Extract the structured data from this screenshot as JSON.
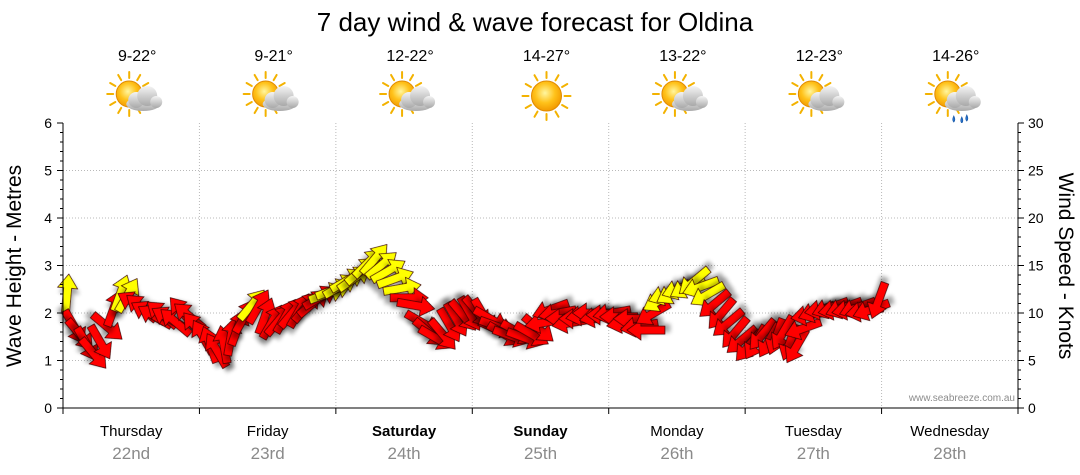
{
  "chart_data": {
    "type": "line",
    "title": "7 day wind & wave forecast for Oldina",
    "ylabel_left": "Wave Height - Metres",
    "ylabel_right": "Wind Speed - Knots",
    "ylim_left": [
      0,
      6
    ],
    "ylim_right": [
      0,
      30
    ],
    "yticks_left": [
      "0",
      "1",
      "2",
      "3",
      "4",
      "5",
      "6"
    ],
    "yticks_right": [
      "0",
      "5",
      "10",
      "15",
      "20",
      "25",
      "30"
    ],
    "watermark": "www.seabreeze.com.au",
    "days": [
      {
        "name": "Thursday",
        "date": "22nd",
        "temp": "9-22°",
        "weather_icon": "partly-cloudy-icon",
        "bold": false
      },
      {
        "name": "Friday",
        "date": "23rd",
        "temp": "9-21°",
        "weather_icon": "partly-cloudy-icon",
        "bold": false
      },
      {
        "name": "Saturday",
        "date": "24th",
        "temp": "12-22°",
        "weather_icon": "partly-cloudy-icon",
        "bold": true
      },
      {
        "name": "Sunday",
        "date": "25th",
        "temp": "14-27°",
        "weather_icon": "sunny-icon",
        "bold": true
      },
      {
        "name": "Monday",
        "date": "26th",
        "temp": "13-22°",
        "weather_icon": "partly-cloudy-icon",
        "bold": false
      },
      {
        "name": "Tuesday",
        "date": "27th",
        "temp": "12-23°",
        "weather_icon": "partly-cloudy-icon",
        "bold": false
      },
      {
        "name": "Wednesday",
        "date": "28th",
        "temp": "14-26°",
        "weather_icon": "showers-icon",
        "bold": false
      }
    ],
    "wind_series": {
      "name": "Wind Speed",
      "unit": "knots",
      "colors": {
        "light": "#ffff00",
        "strong": "#ff0000"
      },
      "points": [
        {
          "t": 0.03,
          "speed": 12.0,
          "dir": 185,
          "c": "y"
        },
        {
          "t": 0.08,
          "speed": 8.6,
          "dir": 330,
          "c": "r"
        },
        {
          "t": 0.12,
          "speed": 7.8,
          "dir": 320,
          "c": "r"
        },
        {
          "t": 0.17,
          "speed": 6.8,
          "dir": 330,
          "c": "r"
        },
        {
          "t": 0.22,
          "speed": 5.8,
          "dir": 320,
          "c": "r"
        },
        {
          "t": 0.27,
          "speed": 7.0,
          "dir": 330,
          "c": "r"
        },
        {
          "t": 0.32,
          "speed": 8.6,
          "dir": 310,
          "c": "r"
        },
        {
          "t": 0.37,
          "speed": 10.4,
          "dir": 200,
          "c": "r"
        },
        {
          "t": 0.42,
          "speed": 12.0,
          "dir": 200,
          "c": "y"
        },
        {
          "t": 0.47,
          "speed": 11.8,
          "dir": 210,
          "c": "y"
        },
        {
          "t": 0.53,
          "speed": 11.0,
          "dir": 120,
          "c": "r"
        },
        {
          "t": 0.58,
          "speed": 10.5,
          "dir": 130,
          "c": "r"
        },
        {
          "t": 0.63,
          "speed": 10.0,
          "dir": 120,
          "c": "r"
        },
        {
          "t": 0.68,
          "speed": 9.6,
          "dir": 120,
          "c": "r"
        },
        {
          "t": 0.73,
          "speed": 9.8,
          "dir": 130,
          "c": "r"
        },
        {
          "t": 0.78,
          "speed": 9.4,
          "dir": 120,
          "c": "r"
        },
        {
          "t": 0.83,
          "speed": 9.0,
          "dir": 130,
          "c": "r"
        },
        {
          "t": 0.88,
          "speed": 10.0,
          "dir": 140,
          "c": "r"
        },
        {
          "t": 0.93,
          "speed": 9.6,
          "dir": 130,
          "c": "r"
        },
        {
          "t": 0.98,
          "speed": 8.4,
          "dir": 140,
          "c": "r"
        },
        {
          "t": 1.03,
          "speed": 7.4,
          "dir": 150,
          "c": "r"
        },
        {
          "t": 1.08,
          "speed": 6.6,
          "dir": 160,
          "c": "r"
        },
        {
          "t": 1.13,
          "speed": 6.0,
          "dir": 150,
          "c": "r"
        },
        {
          "t": 1.18,
          "speed": 6.6,
          "dir": 170,
          "c": "r"
        },
        {
          "t": 1.23,
          "speed": 7.4,
          "dir": 190,
          "c": "r"
        },
        {
          "t": 1.28,
          "speed": 8.4,
          "dir": 200,
          "c": "r"
        },
        {
          "t": 1.33,
          "speed": 9.6,
          "dir": 210,
          "c": "r"
        },
        {
          "t": 1.38,
          "speed": 10.8,
          "dir": 220,
          "c": "y"
        },
        {
          "t": 1.43,
          "speed": 10.6,
          "dir": 210,
          "c": "r"
        },
        {
          "t": 1.48,
          "speed": 9.6,
          "dir": 200,
          "c": "r"
        },
        {
          "t": 1.53,
          "speed": 9.0,
          "dir": 210,
          "c": "r"
        },
        {
          "t": 1.58,
          "speed": 9.2,
          "dir": 220,
          "c": "r"
        },
        {
          "t": 1.63,
          "speed": 9.6,
          "dir": 210,
          "c": "r"
        },
        {
          "t": 1.68,
          "speed": 10.0,
          "dir": 220,
          "c": "r"
        },
        {
          "t": 1.73,
          "speed": 10.2,
          "dir": 210,
          "c": "r"
        },
        {
          "t": 1.78,
          "speed": 10.6,
          "dir": 220,
          "c": "r"
        },
        {
          "t": 1.83,
          "speed": 11.0,
          "dir": 230,
          "c": "r"
        },
        {
          "t": 1.88,
          "speed": 11.6,
          "dir": 240,
          "c": "r"
        },
        {
          "t": 1.93,
          "speed": 12.0,
          "dir": 250,
          "c": "y"
        },
        {
          "t": 1.98,
          "speed": 12.4,
          "dir": 250,
          "c": "y"
        },
        {
          "t": 2.03,
          "speed": 12.8,
          "dir": 240,
          "c": "y"
        },
        {
          "t": 2.08,
          "speed": 13.4,
          "dir": 240,
          "c": "y"
        },
        {
          "t": 2.13,
          "speed": 13.6,
          "dir": 235,
          "c": "y"
        },
        {
          "t": 2.18,
          "speed": 14.4,
          "dir": 230,
          "c": "y"
        },
        {
          "t": 2.23,
          "speed": 15.2,
          "dir": 225,
          "c": "y"
        },
        {
          "t": 2.28,
          "speed": 15.6,
          "dir": 220,
          "c": "y"
        },
        {
          "t": 2.33,
          "speed": 15.0,
          "dir": 230,
          "c": "y"
        },
        {
          "t": 2.38,
          "speed": 14.4,
          "dir": 240,
          "c": "y"
        },
        {
          "t": 2.43,
          "speed": 13.6,
          "dir": 250,
          "c": "y"
        },
        {
          "t": 2.48,
          "speed": 12.6,
          "dir": 260,
          "c": "y"
        },
        {
          "t": 2.53,
          "speed": 11.6,
          "dir": 270,
          "c": "r"
        },
        {
          "t": 2.58,
          "speed": 10.8,
          "dir": 280,
          "c": "r"
        },
        {
          "t": 2.63,
          "speed": 9.0,
          "dir": 300,
          "c": "r"
        },
        {
          "t": 2.68,
          "speed": 8.0,
          "dir": 310,
          "c": "r"
        },
        {
          "t": 2.73,
          "speed": 7.4,
          "dir": 300,
          "c": "r"
        },
        {
          "t": 2.78,
          "speed": 7.8,
          "dir": 320,
          "c": "r"
        },
        {
          "t": 2.83,
          "speed": 8.8,
          "dir": 330,
          "c": "r"
        },
        {
          "t": 2.88,
          "speed": 9.4,
          "dir": 330,
          "c": "r"
        },
        {
          "t": 2.93,
          "speed": 9.8,
          "dir": 320,
          "c": "r"
        },
        {
          "t": 2.98,
          "speed": 10.0,
          "dir": 330,
          "c": "r"
        },
        {
          "t": 3.03,
          "speed": 10.2,
          "dir": 320,
          "c": "r"
        },
        {
          "t": 3.08,
          "speed": 9.8,
          "dir": 330,
          "c": "r"
        },
        {
          "t": 3.13,
          "speed": 9.4,
          "dir": 300,
          "c": "r"
        },
        {
          "t": 3.18,
          "speed": 8.6,
          "dir": 290,
          "c": "r"
        },
        {
          "t": 3.23,
          "speed": 7.8,
          "dir": 300,
          "c": "r"
        },
        {
          "t": 3.28,
          "speed": 7.6,
          "dir": 290,
          "c": "r"
        },
        {
          "t": 3.33,
          "speed": 8.0,
          "dir": 300,
          "c": "r"
        },
        {
          "t": 3.38,
          "speed": 7.4,
          "dir": 290,
          "c": "r"
        },
        {
          "t": 3.43,
          "speed": 7.8,
          "dir": 300,
          "c": "r"
        },
        {
          "t": 3.48,
          "speed": 8.4,
          "dir": 310,
          "c": "r"
        },
        {
          "t": 3.53,
          "speed": 9.0,
          "dir": 80,
          "c": "r"
        },
        {
          "t": 3.58,
          "speed": 10.4,
          "dir": 70,
          "c": "r"
        },
        {
          "t": 3.63,
          "speed": 10.0,
          "dir": 80,
          "c": "r"
        },
        {
          "t": 3.68,
          "speed": 9.4,
          "dir": 90,
          "c": "r"
        },
        {
          "t": 3.73,
          "speed": 9.0,
          "dir": 80,
          "c": "r"
        },
        {
          "t": 3.78,
          "speed": 9.4,
          "dir": 90,
          "c": "r"
        },
        {
          "t": 3.83,
          "speed": 9.8,
          "dir": 80,
          "c": "r"
        },
        {
          "t": 3.88,
          "speed": 10.0,
          "dir": 90,
          "c": "r"
        },
        {
          "t": 3.93,
          "speed": 9.6,
          "dir": 80,
          "c": "r"
        },
        {
          "t": 3.98,
          "speed": 9.8,
          "dir": 90,
          "c": "r"
        },
        {
          "t": 4.03,
          "speed": 10.0,
          "dir": 80,
          "c": "r"
        },
        {
          "t": 4.08,
          "speed": 9.6,
          "dir": 90,
          "c": "r"
        },
        {
          "t": 4.13,
          "speed": 9.0,
          "dir": 80,
          "c": "r"
        },
        {
          "t": 4.18,
          "speed": 9.4,
          "dir": 90,
          "c": "r"
        },
        {
          "t": 4.23,
          "speed": 8.6,
          "dir": 80,
          "c": "r"
        },
        {
          "t": 4.28,
          "speed": 8.2,
          "dir": 90,
          "c": "r"
        },
        {
          "t": 4.33,
          "speed": 10.0,
          "dir": 60,
          "c": "r"
        },
        {
          "t": 4.38,
          "speed": 11.4,
          "dir": 60,
          "c": "y"
        },
        {
          "t": 4.43,
          "speed": 12.0,
          "dir": 70,
          "c": "y"
        },
        {
          "t": 4.48,
          "speed": 12.2,
          "dir": 60,
          "c": "y"
        },
        {
          "t": 4.53,
          "speed": 12.6,
          "dir": 70,
          "c": "y"
        },
        {
          "t": 4.58,
          "speed": 12.8,
          "dir": 60,
          "c": "y"
        },
        {
          "t": 4.63,
          "speed": 13.4,
          "dir": 50,
          "c": "y"
        },
        {
          "t": 4.68,
          "speed": 12.8,
          "dir": 70,
          "c": "y"
        },
        {
          "t": 4.73,
          "speed": 12.0,
          "dir": 60,
          "c": "y"
        },
        {
          "t": 4.78,
          "speed": 11.0,
          "dir": 50,
          "c": "r"
        },
        {
          "t": 4.83,
          "speed": 10.0,
          "dir": 40,
          "c": "r"
        },
        {
          "t": 4.88,
          "speed": 9.0,
          "dir": 50,
          "c": "r"
        },
        {
          "t": 4.93,
          "speed": 8.0,
          "dir": 40,
          "c": "r"
        },
        {
          "t": 4.98,
          "speed": 7.2,
          "dir": 50,
          "c": "r"
        },
        {
          "t": 5.03,
          "speed": 6.6,
          "dir": 40,
          "c": "r"
        },
        {
          "t": 5.08,
          "speed": 7.0,
          "dir": 30,
          "c": "r"
        },
        {
          "t": 5.13,
          "speed": 7.8,
          "dir": 40,
          "c": "r"
        },
        {
          "t": 5.18,
          "speed": 7.2,
          "dir": 30,
          "c": "r"
        },
        {
          "t": 5.23,
          "speed": 7.6,
          "dir": 20,
          "c": "r"
        },
        {
          "t": 5.28,
          "speed": 8.0,
          "dir": 30,
          "c": "r"
        },
        {
          "t": 5.33,
          "speed": 7.0,
          "dir": 20,
          "c": "r"
        },
        {
          "t": 5.38,
          "speed": 6.6,
          "dir": 30,
          "c": "r"
        },
        {
          "t": 5.43,
          "speed": 8.4,
          "dir": 70,
          "c": "r"
        },
        {
          "t": 5.48,
          "speed": 9.8,
          "dir": 80,
          "c": "r"
        },
        {
          "t": 5.53,
          "speed": 10.2,
          "dir": 70,
          "c": "r"
        },
        {
          "t": 5.58,
          "speed": 10.4,
          "dir": 80,
          "c": "r"
        },
        {
          "t": 5.63,
          "speed": 10.6,
          "dir": 70,
          "c": "r"
        },
        {
          "t": 5.68,
          "speed": 10.4,
          "dir": 80,
          "c": "r"
        },
        {
          "t": 5.73,
          "speed": 10.6,
          "dir": 70,
          "c": "r"
        },
        {
          "t": 5.78,
          "speed": 10.4,
          "dir": 80,
          "c": "r"
        },
        {
          "t": 5.83,
          "speed": 10.6,
          "dir": 70,
          "c": "r"
        },
        {
          "t": 5.88,
          "speed": 10.2,
          "dir": 80,
          "c": "r"
        },
        {
          "t": 5.93,
          "speed": 10.4,
          "dir": 70,
          "c": "r"
        },
        {
          "t": 5.98,
          "speed": 11.4,
          "dir": 20,
          "c": "r"
        }
      ]
    }
  }
}
